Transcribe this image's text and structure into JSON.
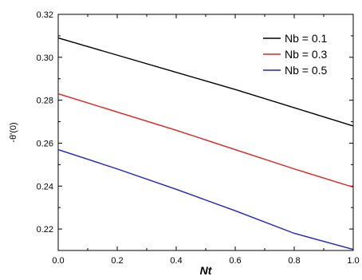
{
  "chart_data": {
    "type": "line",
    "xlabel": "Nt",
    "ylabel": "-θ'(0)",
    "xlim": [
      0.0,
      1.0
    ],
    "ylim": [
      0.21,
      0.32
    ],
    "xticks": [
      "0.0",
      "0.2",
      "0.4",
      "0.6",
      "0.8",
      "1.0"
    ],
    "yticks": [
      "0.22",
      "0.24",
      "0.26",
      "0.28",
      "0.30",
      "0.32"
    ],
    "grid": false,
    "legend_position": "top-right",
    "x": [
      0.0,
      0.2,
      0.4,
      0.6,
      0.8,
      1.0
    ],
    "series": [
      {
        "name": "Nb = 0.1",
        "color": "#000000",
        "values": [
          0.309,
          0.301,
          0.293,
          0.285,
          0.2765,
          0.268
        ]
      },
      {
        "name": "Nb = 0.3",
        "color": "#e0201c",
        "values": [
          0.283,
          0.2745,
          0.266,
          0.257,
          0.248,
          0.2395
        ]
      },
      {
        "name": "Nb = 0.5",
        "color": "#1f22c4",
        "values": [
          0.257,
          0.248,
          0.2385,
          0.2285,
          0.218,
          0.2105
        ]
      }
    ]
  }
}
